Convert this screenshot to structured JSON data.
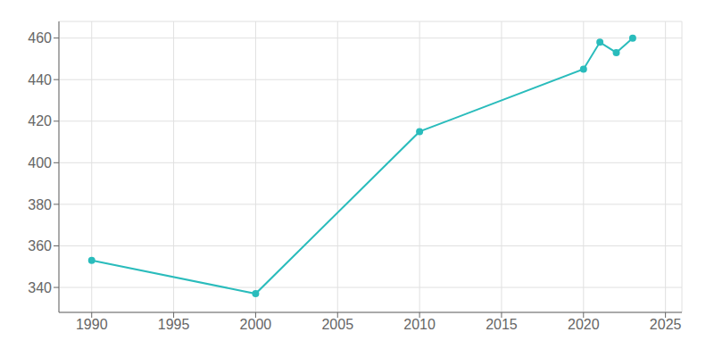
{
  "chart_data": {
    "type": "line",
    "x": [
      1990,
      2000,
      2010,
      2020,
      2021,
      2022,
      2023
    ],
    "values": [
      353,
      337,
      415,
      445,
      458,
      453,
      460
    ],
    "color": "#2ABCBC",
    "xlim": [
      1988,
      2026
    ],
    "ylim": [
      328,
      468
    ],
    "xticks": [
      1990,
      1995,
      2000,
      2005,
      2010,
      2015,
      2020,
      2025
    ],
    "yticks": [
      340,
      360,
      380,
      400,
      420,
      440,
      460
    ],
    "grid": true
  }
}
